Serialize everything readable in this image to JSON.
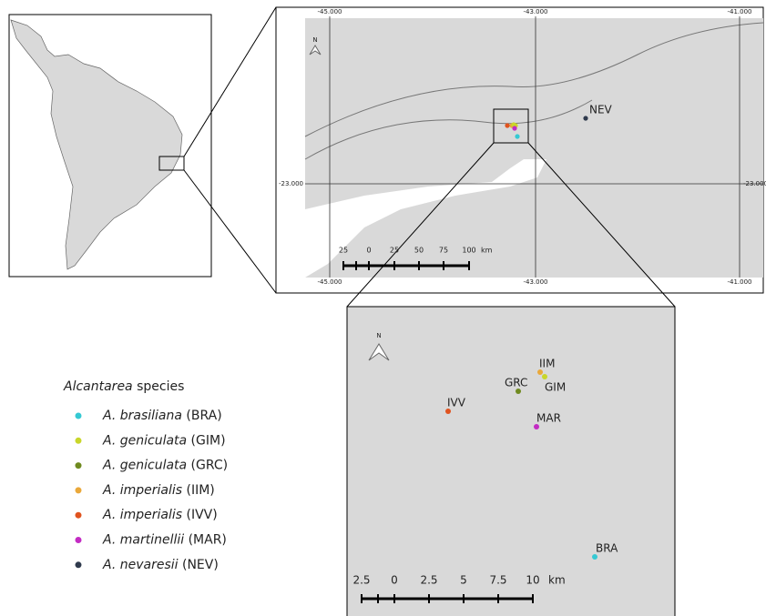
{
  "inset_map": {
    "grid_labels": {
      "top": [
        "-45.000",
        "-43.000",
        "-41.000"
      ],
      "bottom": [
        "-45.000",
        "-43.000",
        "-41.000"
      ],
      "left": "-23.000",
      "right": "-23.000"
    },
    "north": "N",
    "scale_bar": {
      "labels": [
        "25",
        "0",
        "25",
        "50",
        "75",
        "100"
      ],
      "unit": "km"
    },
    "sites": [
      {
        "label": "NEV"
      }
    ]
  },
  "zoom_map": {
    "north": "N",
    "scale_bar": {
      "labels": [
        "2.5",
        "0",
        "2.5",
        "5",
        "7.5",
        "10"
      ],
      "unit": "km"
    },
    "sites": [
      {
        "label": "BRA"
      },
      {
        "label": "GIM"
      },
      {
        "label": "GRC"
      },
      {
        "label": "IIM"
      },
      {
        "label": "IVV"
      },
      {
        "label": "MAR"
      }
    ]
  },
  "legend": {
    "title_genus": "Alcantarea",
    "title_rest": "species",
    "items": [
      {
        "species": "A. brasiliana",
        "code": "(BRA)",
        "color": "#35c9d3"
      },
      {
        "species": "A. geniculata",
        "code": "(GIM)",
        "color": "#c9d62a"
      },
      {
        "species": "A. geniculata",
        "code": "(GRC)",
        "color": "#6f8a1f"
      },
      {
        "species": "A. imperialis",
        "code": "(IIM)",
        "color": "#eaa83a"
      },
      {
        "species": "A. imperialis",
        "code": "(IVV)",
        "color": "#e0531f"
      },
      {
        "species": "A. martinellii",
        "code": "(MAR)",
        "color": "#c32bc3"
      },
      {
        "species": "A. nevaresii",
        "code": "(NEV)",
        "color": "#2f3a4d"
      }
    ]
  }
}
